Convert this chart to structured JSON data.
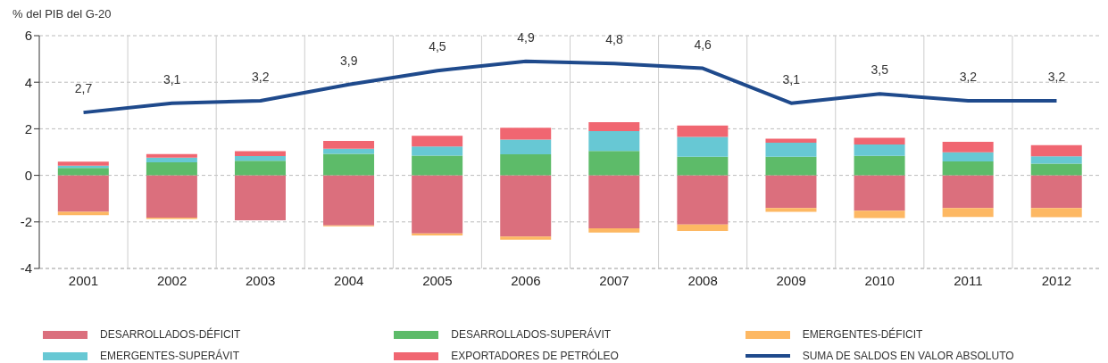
{
  "chart_data": {
    "type": "bar",
    "ylabel": "% del PIB del G-20",
    "categories": [
      "2001",
      "2002",
      "2003",
      "2004",
      "2005",
      "2006",
      "2007",
      "2008",
      "2009",
      "2010",
      "2011",
      "2012"
    ],
    "stacked": true,
    "ylim": [
      -4,
      6
    ],
    "yticks": [
      -4,
      -2,
      0,
      2,
      4,
      6
    ],
    "grid": true,
    "legend": "bottom",
    "series": [
      {
        "name": "DESARROLLADOS-DÉFICIT",
        "color": "#db6f7d",
        "values": [
          -1.57,
          -1.82,
          -1.93,
          -2.15,
          -2.5,
          -2.63,
          -2.28,
          -2.11,
          -1.4,
          -1.52,
          -1.4,
          -1.4
        ]
      },
      {
        "name": "DESARROLLADOS-SUPERÁVIT",
        "color": "#5dbb69",
        "values": [
          0.32,
          0.56,
          0.63,
          0.92,
          0.85,
          0.9,
          1.05,
          0.8,
          0.8,
          0.84,
          0.6,
          0.5
        ]
      },
      {
        "name": "EMERGENTES-DÉFICIT",
        "color": "#fdb863",
        "values": [
          -0.14,
          -0.05,
          null,
          -0.04,
          -0.08,
          -0.13,
          -0.18,
          -0.28,
          -0.17,
          -0.32,
          -0.39,
          -0.4
        ]
      },
      {
        "name": "EMERGENTES-SUPERÁVIT",
        "color": "#67c8d4",
        "values": [
          0.1,
          0.2,
          0.2,
          0.22,
          0.39,
          0.64,
          0.85,
          0.85,
          0.6,
          0.49,
          0.39,
          0.32
        ]
      },
      {
        "name": "EXPORTADORES DE PETRÓLEO",
        "color": "#f06671",
        "values": [
          0.17,
          0.15,
          0.21,
          0.34,
          0.46,
          0.5,
          0.38,
          0.49,
          0.17,
          0.28,
          0.45,
          0.48
        ]
      },
      {
        "name": "SUMA DE SALDOS EN VALOR ABSOLUTO",
        "type": "line",
        "color": "#1f4a8c",
        "values": [
          2.7,
          3.1,
          3.2,
          3.9,
          4.5,
          4.9,
          4.8,
          4.6,
          3.1,
          3.5,
          3.2,
          3.2
        ],
        "value_labels": [
          "2,7",
          "3,1",
          "3,2",
          "3,9",
          "4,5",
          "4,9",
          "4,8",
          "4,6",
          "3,1",
          "3,5",
          "3,2",
          "3,2"
        ]
      }
    ]
  }
}
